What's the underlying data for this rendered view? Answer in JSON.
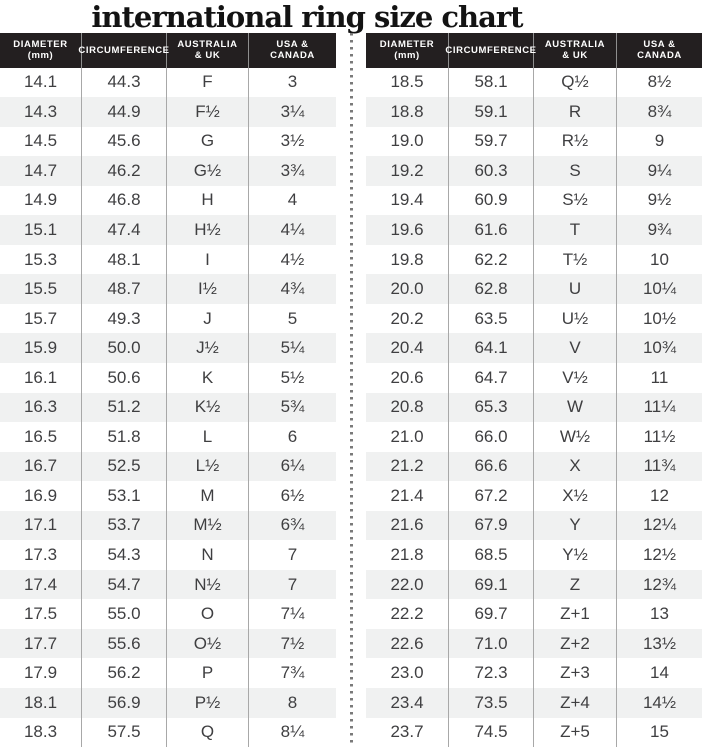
{
  "title": "international ring size chart",
  "colors": {
    "title_text": "#131313",
    "header_bg": "#231f20",
    "header_text": "#ffffff",
    "row_stripe": "#f0f1f1",
    "grid_line": "#a8a8a8",
    "body_text": "#3f3f41",
    "divider_dot": "#7a7a7a"
  },
  "header_columns": [
    {
      "lines": [
        "DIAMETER",
        "(mm)"
      ]
    },
    {
      "lines": [
        "CIRCUMFERENCE"
      ]
    },
    {
      "lines": [
        "AUSTRALIA",
        "& UK"
      ]
    },
    {
      "lines": [
        "USA &",
        "CANADA"
      ]
    }
  ],
  "chart_data": {
    "type": "table",
    "title": "international ring size chart",
    "columns": [
      "Diameter (mm)",
      "Circumference",
      "Australia & UK",
      "USA & Canada"
    ],
    "tables": [
      {
        "position": "left",
        "rows": [
          [
            "14.1",
            "44.3",
            "F",
            "3"
          ],
          [
            "14.3",
            "44.9",
            "F½",
            "3¼"
          ],
          [
            "14.5",
            "45.6",
            "G",
            "3½"
          ],
          [
            "14.7",
            "46.2",
            "G½",
            "3¾"
          ],
          [
            "14.9",
            "46.8",
            "H",
            "4"
          ],
          [
            "15.1",
            "47.4",
            "H½",
            "4¼"
          ],
          [
            "15.3",
            "48.1",
            "I",
            "4½"
          ],
          [
            "15.5",
            "48.7",
            "I½",
            "4¾"
          ],
          [
            "15.7",
            "49.3",
            "J",
            "5"
          ],
          [
            "15.9",
            "50.0",
            "J½",
            "5¼"
          ],
          [
            "16.1",
            "50.6",
            "K",
            "5½"
          ],
          [
            "16.3",
            "51.2",
            "K½",
            "5¾"
          ],
          [
            "16.5",
            "51.8",
            "L",
            "6"
          ],
          [
            "16.7",
            "52.5",
            "L½",
            "6¼"
          ],
          [
            "16.9",
            "53.1",
            "M",
            "6½"
          ],
          [
            "17.1",
            "53.7",
            "M½",
            "6¾"
          ],
          [
            "17.3",
            "54.3",
            "N",
            "7"
          ],
          [
            "17.4",
            "54.7",
            "N½",
            "7"
          ],
          [
            "17.5",
            "55.0",
            "O",
            "7¼"
          ],
          [
            "17.7",
            "55.6",
            "O½",
            "7½"
          ],
          [
            "17.9",
            "56.2",
            "P",
            "7¾"
          ],
          [
            "18.1",
            "56.9",
            "P½",
            "8"
          ],
          [
            "18.3",
            "57.5",
            "Q",
            "8¼"
          ]
        ]
      },
      {
        "position": "right",
        "rows": [
          [
            "18.5",
            "58.1",
            "Q½",
            "8½"
          ],
          [
            "18.8",
            "59.1",
            "R",
            "8¾"
          ],
          [
            "19.0",
            "59.7",
            "R½",
            "9"
          ],
          [
            "19.2",
            "60.3",
            "S",
            "9¼"
          ],
          [
            "19.4",
            "60.9",
            "S½",
            "9½"
          ],
          [
            "19.6",
            "61.6",
            "T",
            "9¾"
          ],
          [
            "19.8",
            "62.2",
            "T½",
            "10"
          ],
          [
            "20.0",
            "62.8",
            "U",
            "10¼"
          ],
          [
            "20.2",
            "63.5",
            "U½",
            "10½"
          ],
          [
            "20.4",
            "64.1",
            "V",
            "10¾"
          ],
          [
            "20.6",
            "64.7",
            "V½",
            "11"
          ],
          [
            "20.8",
            "65.3",
            "W",
            "11¼"
          ],
          [
            "21.0",
            "66.0",
            "W½",
            "11½"
          ],
          [
            "21.2",
            "66.6",
            "X",
            "11¾"
          ],
          [
            "21.4",
            "67.2",
            "X½",
            "12"
          ],
          [
            "21.6",
            "67.9",
            "Y",
            "12¼"
          ],
          [
            "21.8",
            "68.5",
            "Y½",
            "12½"
          ],
          [
            "22.0",
            "69.1",
            "Z",
            "12¾"
          ],
          [
            "22.2",
            "69.7",
            "Z+1",
            "13"
          ],
          [
            "22.6",
            "71.0",
            "Z+2",
            "13½"
          ],
          [
            "23.0",
            "72.3",
            "Z+3",
            "14"
          ],
          [
            "23.4",
            "73.5",
            "Z+4",
            "14½"
          ],
          [
            "23.7",
            "74.5",
            "Z+5",
            "15"
          ]
        ]
      }
    ]
  }
}
